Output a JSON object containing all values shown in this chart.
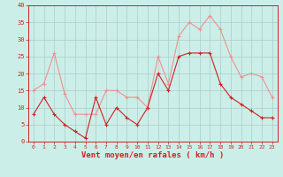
{
  "hours": [
    0,
    1,
    2,
    3,
    4,
    5,
    6,
    7,
    8,
    9,
    10,
    11,
    12,
    13,
    14,
    15,
    16,
    17,
    18,
    19,
    20,
    21,
    22,
    23
  ],
  "wind_avg": [
    8,
    13,
    8,
    5,
    3,
    1,
    13,
    5,
    10,
    7,
    5,
    10,
    20,
    15,
    25,
    26,
    26,
    26,
    17,
    13,
    11,
    9,
    7,
    7
  ],
  "wind_gust": [
    15,
    17,
    26,
    14,
    8,
    8,
    8,
    15,
    15,
    13,
    13,
    10,
    25,
    17,
    31,
    35,
    33,
    37,
    33,
    25,
    19,
    20,
    19,
    13
  ],
  "color_avg": "#cc2222",
  "color_gust": "#f09090",
  "bg_color": "#cceee8",
  "grid_color": "#aacccc",
  "xlabel": "Vent moyen/en rafales ( km/h )",
  "xlabel_color": "#cc2222",
  "tick_color": "#cc2222",
  "ylim": [
    0,
    40
  ],
  "yticks": [
    0,
    5,
    10,
    15,
    20,
    25,
    30,
    35,
    40
  ],
  "figsize": [
    3.2,
    2.0
  ],
  "dpi": 100
}
